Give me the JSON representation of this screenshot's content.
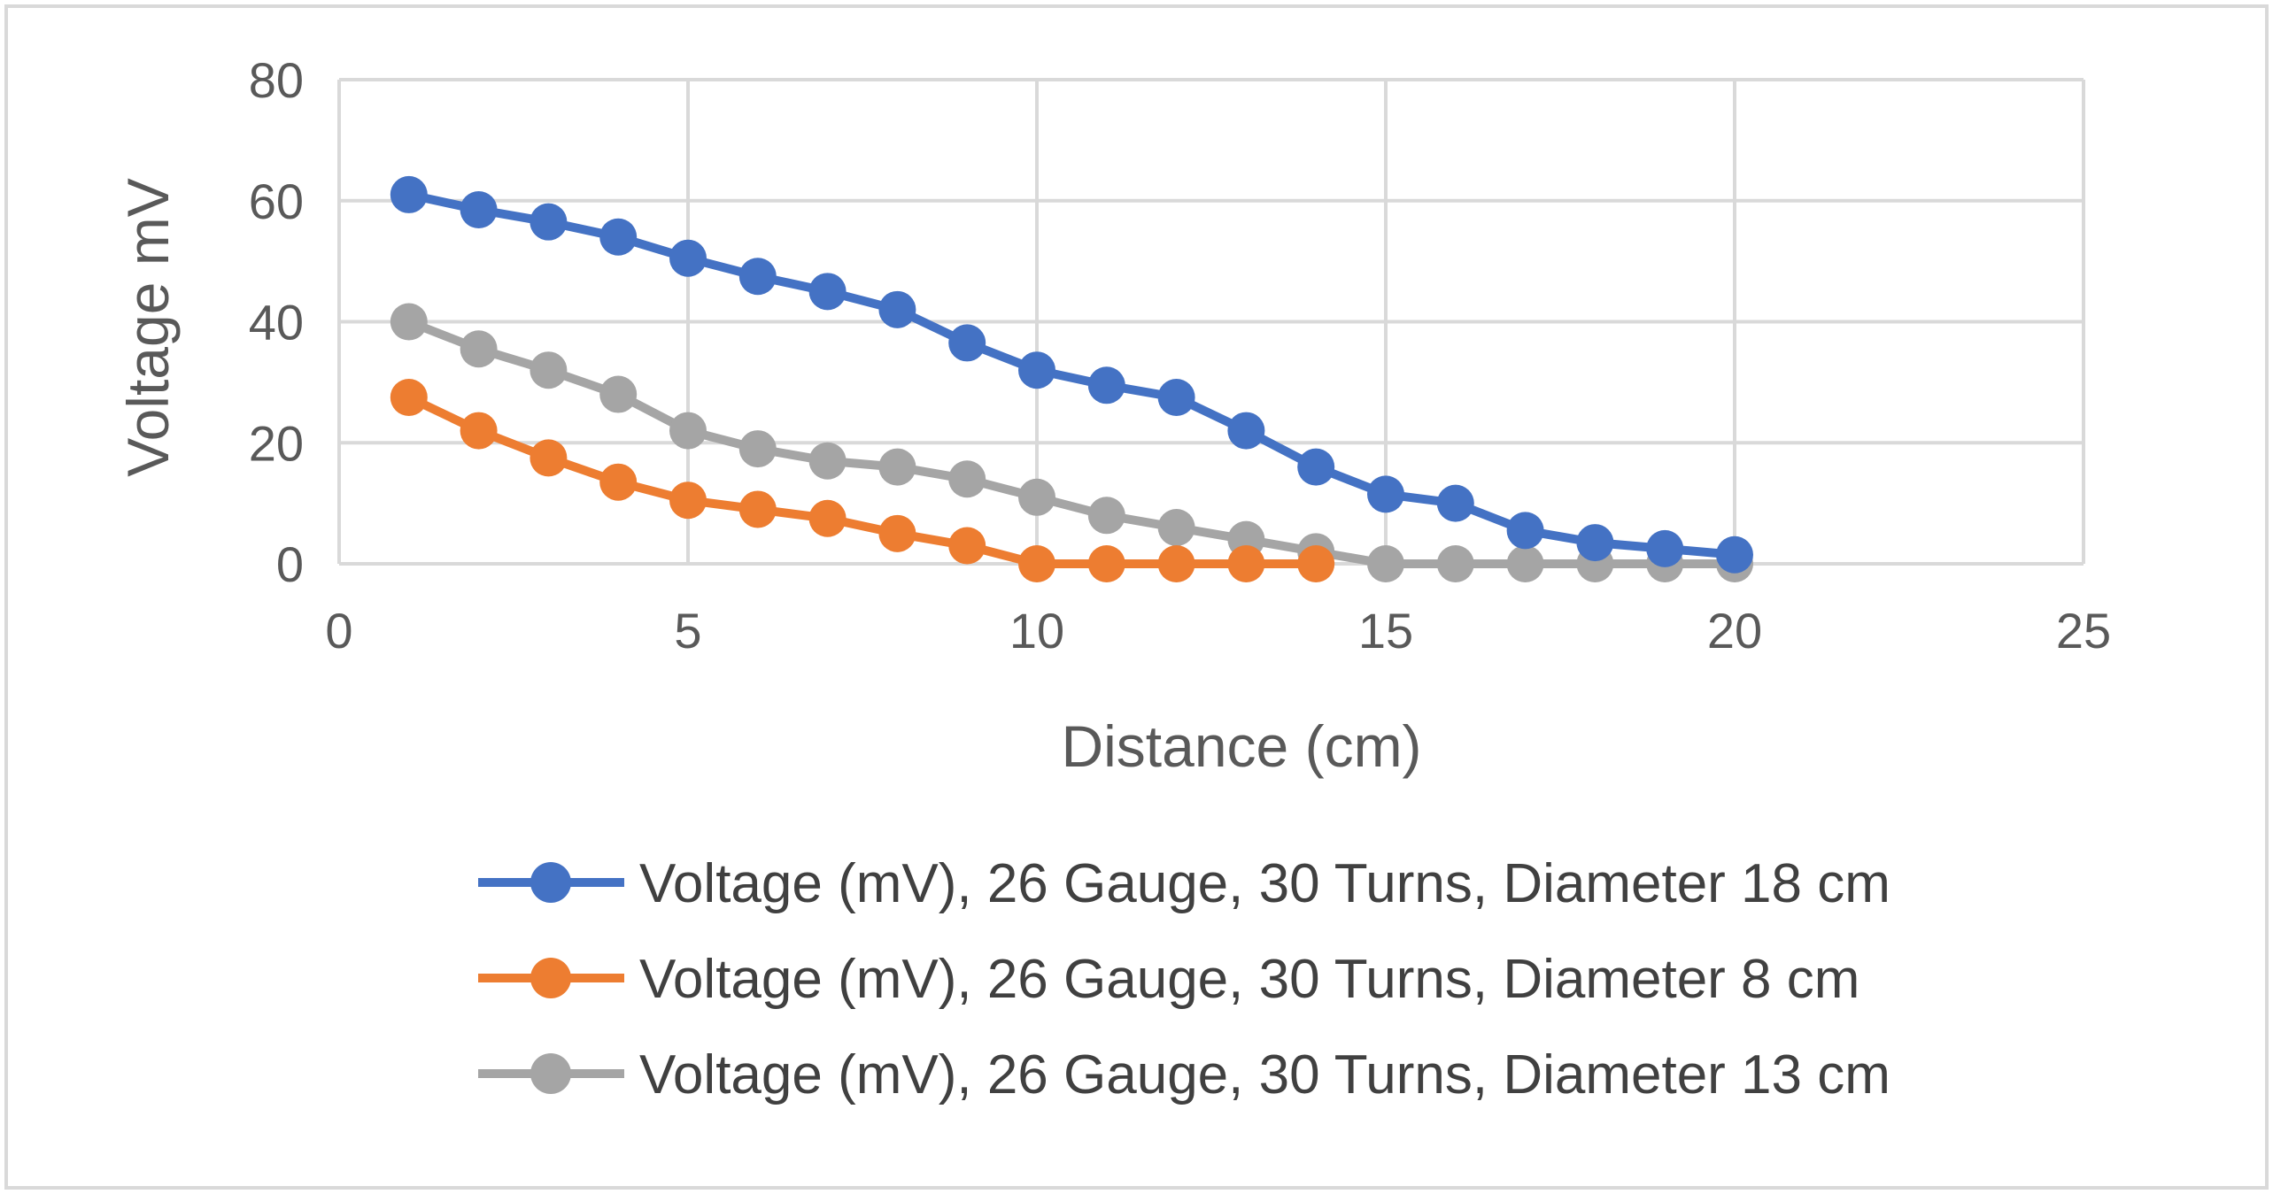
{
  "chart_data": {
    "type": "line",
    "title": "",
    "xlabel": "Distance (cm)",
    "ylabel": "Voltage mV",
    "xlim": [
      0,
      25
    ],
    "ylim": [
      0,
      80
    ],
    "xticks": [
      0,
      5,
      10,
      15,
      20,
      25
    ],
    "yticks": [
      0,
      20,
      40,
      60,
      80
    ],
    "grid": true,
    "legend_position": "bottom",
    "series": [
      {
        "name": "Voltage (mV), 26 Gauge, 30 Turns, Diameter 18 cm",
        "color": "#4472C4",
        "x": [
          1,
          2,
          3,
          4,
          5,
          6,
          7,
          8,
          9,
          10,
          11,
          12,
          13,
          14,
          15,
          16,
          17,
          18,
          19,
          20
        ],
        "values": [
          61,
          58.5,
          56.5,
          54,
          50.5,
          47.5,
          45,
          42,
          36.5,
          32,
          29.5,
          27.5,
          22,
          16,
          11.5,
          10,
          5.5,
          3.5,
          2.5,
          1.5
        ]
      },
      {
        "name": "Voltage (mV), 26 Gauge, 30 Turns, Diameter 8 cm",
        "color": "#ED7D31",
        "x": [
          1,
          2,
          3,
          4,
          5,
          6,
          7,
          8,
          9,
          10,
          11,
          12,
          13,
          14
        ],
        "values": [
          27.5,
          22,
          17.5,
          13.5,
          10.5,
          9,
          7.5,
          5,
          3,
          0,
          0,
          0,
          0,
          0
        ]
      },
      {
        "name": "Voltage (mV), 26 Gauge, 30 Turns, Diameter 13 cm",
        "color": "#A5A5A5",
        "x": [
          1,
          2,
          3,
          4,
          5,
          6,
          7,
          8,
          9,
          10,
          11,
          12,
          13,
          14,
          15,
          16,
          17,
          18,
          19,
          20
        ],
        "values": [
          40,
          35.5,
          32,
          28,
          22,
          19,
          17,
          16,
          14,
          11,
          8,
          6,
          4,
          2,
          0,
          0,
          0,
          0,
          0,
          0
        ]
      }
    ]
  }
}
